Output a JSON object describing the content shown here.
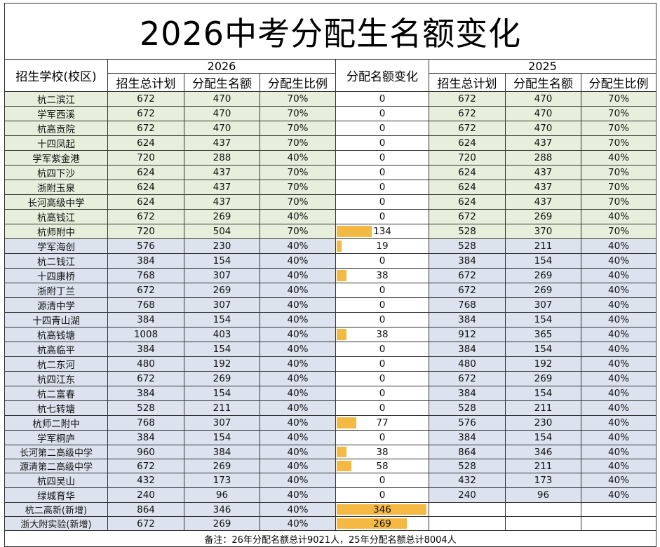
{
  "title": "2026中考分配生名额变化",
  "headers": {
    "school": "招生学校(校区)",
    "year_2026": "2026",
    "change": "分配名额变化",
    "year_2025": "2025",
    "plan": "招生总计划",
    "quota": "分配生名额",
    "ratio": "分配生比例"
  },
  "rows": [
    {
      "school": "杭二滨江",
      "plan26": "672",
      "quota26": "470",
      "ratio26": "70%",
      "change": "0",
      "plan25": "672",
      "quota25": "470",
      "ratio25": "70%",
      "band": "g"
    },
    {
      "school": "学军西溪",
      "plan26": "672",
      "quota26": "470",
      "ratio26": "70%",
      "change": "0",
      "plan25": "672",
      "quota25": "470",
      "ratio25": "70%",
      "band": "g"
    },
    {
      "school": "杭高贡院",
      "plan26": "672",
      "quota26": "470",
      "ratio26": "70%",
      "change": "0",
      "plan25": "672",
      "quota25": "470",
      "ratio25": "70%",
      "band": "g"
    },
    {
      "school": "十四凤起",
      "plan26": "624",
      "quota26": "437",
      "ratio26": "70%",
      "change": "0",
      "plan25": "624",
      "quota25": "437",
      "ratio25": "70%",
      "band": "g"
    },
    {
      "school": "学军紫金港",
      "plan26": "720",
      "quota26": "288",
      "ratio26": "40%",
      "change": "0",
      "plan25": "720",
      "quota25": "288",
      "ratio25": "40%",
      "band": "g"
    },
    {
      "school": "杭四下沙",
      "plan26": "624",
      "quota26": "437",
      "ratio26": "70%",
      "change": "0",
      "plan25": "624",
      "quota25": "437",
      "ratio25": "70%",
      "band": "g"
    },
    {
      "school": "浙附玉泉",
      "plan26": "624",
      "quota26": "437",
      "ratio26": "70%",
      "change": "0",
      "plan25": "624",
      "quota25": "437",
      "ratio25": "70%",
      "band": "g"
    },
    {
      "school": "长河高级中学",
      "plan26": "624",
      "quota26": "437",
      "ratio26": "70%",
      "change": "0",
      "plan25": "624",
      "quota25": "437",
      "ratio25": "70%",
      "band": "g"
    },
    {
      "school": "杭高钱江",
      "plan26": "672",
      "quota26": "269",
      "ratio26": "40%",
      "change": "0",
      "plan25": "672",
      "quota25": "269",
      "ratio25": "40%",
      "band": "g"
    },
    {
      "school": "杭师附中",
      "plan26": "720",
      "quota26": "504",
      "ratio26": "70%",
      "change": "134",
      "plan25": "528",
      "quota25": "370",
      "ratio25": "70%",
      "band": "g"
    },
    {
      "school": "学军海创",
      "plan26": "576",
      "quota26": "230",
      "ratio26": "40%",
      "change": "19",
      "plan25": "528",
      "quota25": "211",
      "ratio25": "40%",
      "band": "b"
    },
    {
      "school": "杭二钱江",
      "plan26": "384",
      "quota26": "154",
      "ratio26": "40%",
      "change": "0",
      "plan25": "384",
      "quota25": "154",
      "ratio25": "40%",
      "band": "b"
    },
    {
      "school": "十四康桥",
      "plan26": "768",
      "quota26": "307",
      "ratio26": "40%",
      "change": "38",
      "plan25": "672",
      "quota25": "269",
      "ratio25": "40%",
      "band": "b"
    },
    {
      "school": "浙附丁兰",
      "plan26": "672",
      "quota26": "269",
      "ratio26": "40%",
      "change": "0",
      "plan25": "672",
      "quota25": "269",
      "ratio25": "40%",
      "band": "b"
    },
    {
      "school": "源清中学",
      "plan26": "768",
      "quota26": "307",
      "ratio26": "40%",
      "change": "0",
      "plan25": "768",
      "quota25": "307",
      "ratio25": "40%",
      "band": "b"
    },
    {
      "school": "十四青山湖",
      "plan26": "384",
      "quota26": "154",
      "ratio26": "40%",
      "change": "0",
      "plan25": "384",
      "quota25": "154",
      "ratio25": "40%",
      "band": "b"
    },
    {
      "school": "杭高钱塘",
      "plan26": "1008",
      "quota26": "403",
      "ratio26": "40%",
      "change": "38",
      "plan25": "912",
      "quota25": "365",
      "ratio25": "40%",
      "band": "b"
    },
    {
      "school": "杭高临平",
      "plan26": "384",
      "quota26": "154",
      "ratio26": "40%",
      "change": "0",
      "plan25": "384",
      "quota25": "154",
      "ratio25": "40%",
      "band": "b"
    },
    {
      "school": "杭二东河",
      "plan26": "480",
      "quota26": "192",
      "ratio26": "40%",
      "change": "0",
      "plan25": "480",
      "quota25": "192",
      "ratio25": "40%",
      "band": "b"
    },
    {
      "school": "杭四江东",
      "plan26": "672",
      "quota26": "269",
      "ratio26": "40%",
      "change": "0",
      "plan25": "672",
      "quota25": "269",
      "ratio25": "40%",
      "band": "b"
    },
    {
      "school": "杭二富春",
      "plan26": "384",
      "quota26": "154",
      "ratio26": "40%",
      "change": "0",
      "plan25": "384",
      "quota25": "154",
      "ratio25": "40%",
      "band": "b"
    },
    {
      "school": "杭七转塘",
      "plan26": "528",
      "quota26": "211",
      "ratio26": "40%",
      "change": "0",
      "plan25": "528",
      "quota25": "211",
      "ratio25": "40%",
      "band": "b"
    },
    {
      "school": "杭师二附中",
      "plan26": "768",
      "quota26": "307",
      "ratio26": "40%",
      "change": "77",
      "plan25": "576",
      "quota25": "230",
      "ratio25": "40%",
      "band": "b"
    },
    {
      "school": "学军桐庐",
      "plan26": "384",
      "quota26": "154",
      "ratio26": "40%",
      "change": "0",
      "plan25": "384",
      "quota25": "154",
      "ratio25": "40%",
      "band": "b"
    },
    {
      "school": "长河第二高级中学",
      "plan26": "960",
      "quota26": "384",
      "ratio26": "40%",
      "change": "38",
      "plan25": "864",
      "quota25": "346",
      "ratio25": "40%",
      "band": "b"
    },
    {
      "school": "源清第二高级中学",
      "plan26": "672",
      "quota26": "269",
      "ratio26": "40%",
      "change": "58",
      "plan25": "528",
      "quota25": "211",
      "ratio25": "40%",
      "band": "b"
    },
    {
      "school": "杭四吴山",
      "plan26": "432",
      "quota26": "173",
      "ratio26": "40%",
      "change": "0",
      "plan25": "432",
      "quota25": "173",
      "ratio25": "40%",
      "band": "b"
    },
    {
      "school": "绿城育华",
      "plan26": "240",
      "quota26": "96",
      "ratio26": "40%",
      "change": "0",
      "plan25": "240",
      "quota25": "96",
      "ratio25": "40%",
      "band": "b"
    },
    {
      "school": "杭二高新(新增)",
      "plan26": "864",
      "quota26": "346",
      "ratio26": "40%",
      "change": "346",
      "plan25": "",
      "quota25": "",
      "ratio25": "",
      "band": "b"
    },
    {
      "school": "浙大附实验(新增)",
      "plan26": "672",
      "quota26": "269",
      "ratio26": "40%",
      "change": "269",
      "plan25": "",
      "quota25": "",
      "ratio25": "",
      "band": "b"
    }
  ],
  "note": "备注：26年分配名额总计9021人，25年分配名额总计8004人",
  "colors": {
    "bar": "#f4b942",
    "green_band": "#e7efdc",
    "blue_band": "#dce3ef"
  }
}
